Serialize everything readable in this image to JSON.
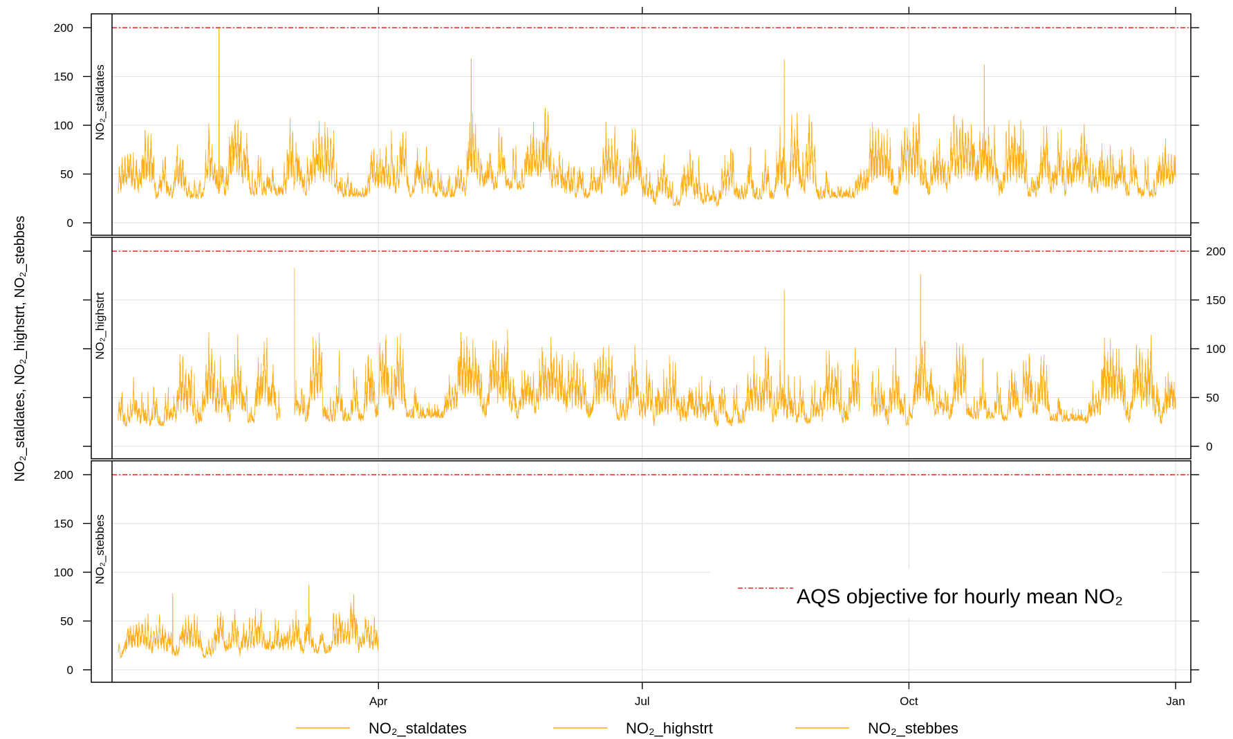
{
  "chart_data": {
    "type": "line",
    "layout": "three stacked panels sharing a time axis",
    "ylabel": "NO₂_staldates, NO₂_highstrt, NO₂_stebbes",
    "x_range": [
      "Jan",
      "Jan"
    ],
    "x_ticks": [
      "Apr",
      "Jul",
      "Oct",
      "Jan"
    ],
    "ylim": [
      0,
      200
    ],
    "y_ticks": [
      0,
      50,
      100,
      150,
      200
    ],
    "grid": true,
    "reference_line": {
      "value": 200,
      "label": "AQS objective for hourly mean NO₂",
      "color": "#e8251f",
      "style": "dash-dot"
    },
    "panels": [
      {
        "name": "NO₂_staldates",
        "y_axis_side": "left",
        "color": "#ffa500",
        "months": [
          "Jan",
          "Feb",
          "Mar",
          "Apr",
          "May",
          "Jun",
          "Jul",
          "Aug",
          "Sep",
          "Oct",
          "Nov",
          "Dec"
        ],
        "approx_typical_range": [
          [
            10,
            100
          ],
          [
            10,
            120
          ],
          [
            10,
            110
          ],
          [
            10,
            110
          ],
          [
            15,
            130
          ],
          [
            10,
            105
          ],
          [
            5,
            80
          ],
          [
            5,
            120
          ],
          [
            10,
            105
          ],
          [
            10,
            120
          ],
          [
            10,
            110
          ],
          [
            10,
            110
          ]
        ],
        "notable_peaks": [
          {
            "x": "Feb 5",
            "y": 200
          },
          {
            "x": "May 3",
            "y": 168
          },
          {
            "x": "Aug 19",
            "y": 167
          },
          {
            "x": "Oct 27",
            "y": 162
          }
        ]
      },
      {
        "name": "NO₂_highstrt",
        "y_axis_side": "right",
        "color": "#ffa500",
        "months": [
          "Jan",
          "Feb",
          "Mar",
          "Apr",
          "May",
          "Jun",
          "Jul",
          "Aug",
          "Sep",
          "Oct",
          "Nov",
          "Dec"
        ],
        "approx_typical_range": [
          [
            5,
            100
          ],
          [
            5,
            120
          ],
          [
            5,
            130
          ],
          [
            10,
            125
          ],
          [
            10,
            120
          ],
          [
            10,
            110
          ],
          [
            5,
            100
          ],
          [
            5,
            115
          ],
          [
            5,
            105
          ],
          [
            10,
            120
          ],
          [
            10,
            105
          ],
          [
            5,
            115
          ]
        ],
        "notable_peaks": [
          {
            "x": "Mar 3",
            "y": 183
          },
          {
            "x": "Aug 19",
            "y": 160
          },
          {
            "x": "Oct 5",
            "y": 176
          }
        ],
        "gaps": [
          [
            "Feb 26",
            "Mar 3"
          ],
          [
            "Sep 14",
            "Sep 18"
          ]
        ]
      },
      {
        "name": "NO₂_stebbes",
        "y_axis_side": "left",
        "color": "#ffa500",
        "data_end": "Apr 1",
        "months": [
          "Jan",
          "Feb",
          "Mar"
        ],
        "approx_typical_range": [
          [
            3,
            60
          ],
          [
            3,
            70
          ],
          [
            3,
            85
          ]
        ],
        "notable_peaks": [
          {
            "x": "Jan 20",
            "y": 78
          },
          {
            "x": "Mar 8",
            "y": 87
          }
        ]
      }
    ],
    "legend": {
      "position": "bottom",
      "entries": [
        "NO₂_staldates",
        "NO₂_highstrt",
        "NO₂_stebbes"
      ]
    }
  }
}
